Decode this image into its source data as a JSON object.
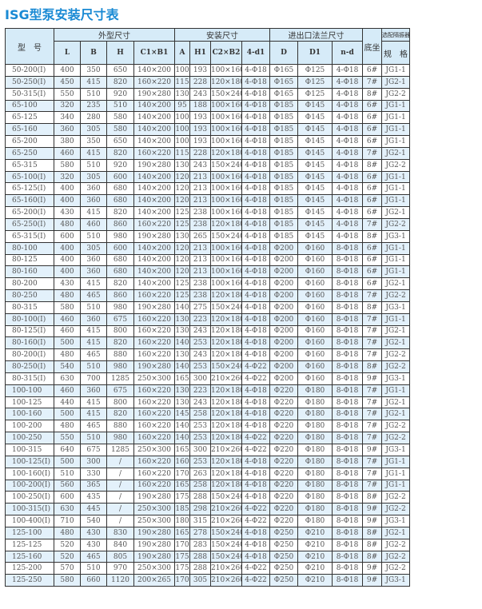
{
  "title": "ISG型泵安装尺寸表",
  "header": {
    "model": "型　号",
    "groups": [
      "外型尺寸",
      "安装尺寸",
      "进出口法兰尺寸"
    ],
    "base": "底坐",
    "isolator_top": "选配隔振器",
    "isolator_bottom": "规　格",
    "columns": [
      "L",
      "B",
      "H",
      "C1×B1",
      "A",
      "H1",
      "C2×B2",
      "4-d1",
      "D",
      "D1",
      "n-d"
    ]
  },
  "colors": {
    "title": "#1a8ad4",
    "header_bg": "#d6ebf8",
    "row_alt_bg": "#e3f1fb"
  },
  "rows": [
    [
      "50-200(I)",
      "400",
      "350",
      "650",
      "140×200",
      "100",
      "193",
      "100×160",
      "4-Φ18",
      "Φ165",
      "Φ125",
      "4-Φ18",
      "6#",
      "JG1-1"
    ],
    [
      "50-250(I)",
      "450",
      "415",
      "820",
      "160×220",
      "115",
      "228",
      "120×180",
      "4-Φ18",
      "Φ165",
      "Φ125",
      "4-Φ18",
      "7#",
      "JG2-1"
    ],
    [
      "50-315(I)",
      "550",
      "510",
      "920",
      "190×280",
      "130",
      "243",
      "150×240",
      "4-Φ18",
      "Φ165",
      "Φ125",
      "4-Φ18",
      "8#",
      "JG2-2"
    ],
    [
      "65-100",
      "320",
      "235",
      "510",
      "140×200",
      "95",
      "188",
      "100×160",
      "4-Φ18",
      "Φ185",
      "Φ145",
      "4-Φ18",
      "6#",
      "JG1-1"
    ],
    [
      "65-125",
      "340",
      "280",
      "580",
      "140×200",
      "100",
      "193",
      "100×160",
      "4-Φ18",
      "Φ185",
      "Φ145",
      "4-Φ18",
      "6#",
      "JG1-1"
    ],
    [
      "65-160",
      "360",
      "305",
      "580",
      "140×200",
      "100",
      "193",
      "100×160",
      "4-Φ18",
      "Φ185",
      "Φ145",
      "4-Φ18",
      "6#",
      "JG1-1"
    ],
    [
      "65-200",
      "380",
      "350",
      "650",
      "140×200",
      "100",
      "193",
      "100×160",
      "4-Φ18",
      "Φ185",
      "Φ145",
      "4-Φ18",
      "6#",
      "JG1-1"
    ],
    [
      "65-250",
      "460",
      "415",
      "820",
      "160×220",
      "115",
      "228",
      "120×180",
      "4-Φ18",
      "Φ185",
      "Φ145",
      "4-Φ18",
      "7#",
      "JG2-1"
    ],
    [
      "65-315",
      "580",
      "510",
      "920",
      "190×280",
      "130",
      "243",
      "150×240",
      "4-Φ18",
      "Φ185",
      "Φ145",
      "4-Φ18",
      "8#",
      "JG2-2"
    ],
    [
      "65-100(I)",
      "320",
      "305",
      "600",
      "140×200",
      "120",
      "213",
      "100×160",
      "4-Φ18",
      "Φ185",
      "Φ145",
      "4-Φ18",
      "6#",
      "JG1-1"
    ],
    [
      "65-125(I)",
      "400",
      "360",
      "680",
      "140×200",
      "120",
      "213",
      "100×160",
      "4-Φ18",
      "Φ185",
      "Φ145",
      "4-Φ18",
      "6#",
      "JG1-1"
    ],
    [
      "65-160(I)",
      "400",
      "360",
      "680",
      "140×200",
      "120",
      "213",
      "100×160",
      "4-Φ18",
      "Φ185",
      "Φ145",
      "4-Φ18",
      "6#",
      "JG1-1"
    ],
    [
      "65-200(I)",
      "430",
      "415",
      "820",
      "140×200",
      "125",
      "238",
      "100×160",
      "4-Φ18",
      "Φ185",
      "Φ145",
      "4-Φ18",
      "6#",
      "JG2-1"
    ],
    [
      "65-250(I)",
      "480",
      "460",
      "860",
      "160×220",
      "125",
      "238",
      "120×180",
      "4-Φ18",
      "Φ185",
      "Φ145",
      "4-Φ18",
      "7#",
      "JG2-2"
    ],
    [
      "65-315(I)",
      "600",
      "510",
      "980",
      "190×280",
      "130",
      "265",
      "150×240",
      "4-Φ18",
      "Φ185",
      "Φ145",
      "4-Φ18",
      "8#",
      "JG3-1"
    ],
    [
      "80-100",
      "400",
      "305",
      "600",
      "140×200",
      "120",
      "213",
      "100×160",
      "4-Φ18",
      "Φ200",
      "Φ160",
      "8-Φ18",
      "6#",
      "JG1-1"
    ],
    [
      "80-125",
      "400",
      "360",
      "680",
      "140×200",
      "120",
      "213",
      "100×160",
      "4-Φ18",
      "Φ200",
      "Φ160",
      "8-Φ18",
      "6#",
      "JG1-1"
    ],
    [
      "80-160",
      "400",
      "360",
      "680",
      "140×200",
      "120",
      "213",
      "100×160",
      "4-Φ18",
      "Φ200",
      "Φ160",
      "8-Φ18",
      "6#",
      "JG1-1"
    ],
    [
      "80-200",
      "430",
      "415",
      "820",
      "140×200",
      "125",
      "238",
      "100×160",
      "4-Φ18",
      "Φ200",
      "Φ160",
      "8-Φ18",
      "6#",
      "JG2-1"
    ],
    [
      "80-250",
      "480",
      "465",
      "860",
      "160×220",
      "125",
      "238",
      "120×180",
      "4-Φ18",
      "Φ200",
      "Φ160",
      "8-Φ18",
      "7#",
      "JG2-2"
    ],
    [
      "80-315",
      "580",
      "510",
      "980",
      "190×280",
      "140",
      "275",
      "150×240",
      "4-Φ18",
      "Φ200",
      "Φ160",
      "8-Φ18",
      "8#",
      "JG3-1"
    ],
    [
      "80-100(I)",
      "460",
      "360",
      "675",
      "160×220",
      "130",
      "223",
      "120×180",
      "4-Φ18",
      "Φ200",
      "Φ160",
      "8-Φ18",
      "7#",
      "JG1-1"
    ],
    [
      "80-125(I)",
      "460",
      "415",
      "800",
      "160×220",
      "130",
      "243",
      "120×180",
      "4-Φ18",
      "Φ200",
      "Φ160",
      "8-Φ18",
      "7#",
      "JG2-1"
    ],
    [
      "80-160(I)",
      "500",
      "415",
      "820",
      "160×220",
      "140",
      "253",
      "120×180",
      "4-Φ18",
      "Φ200",
      "Φ160",
      "8-Φ18",
      "7#",
      "JG2-1"
    ],
    [
      "80-200(I)",
      "480",
      "465",
      "880",
      "160×220",
      "130",
      "243",
      "120×180",
      "4-Φ18",
      "Φ200",
      "Φ160",
      "8-Φ18",
      "7#",
      "JG2-2"
    ],
    [
      "80-250(I)",
      "540",
      "510",
      "980",
      "190×280",
      "140",
      "253",
      "150×240",
      "4-Φ22",
      "Φ200",
      "Φ160",
      "8-Φ18",
      "8#",
      "JG2-2"
    ],
    [
      "80-315(I)",
      "630",
      "700",
      "1285",
      "250×300",
      "165",
      "300",
      "210×260",
      "4-Φ22",
      "Φ200",
      "Φ160",
      "8-Φ18",
      "9#",
      "JG3-1"
    ],
    [
      "100-100",
      "460",
      "360",
      "675",
      "160×220",
      "130",
      "223",
      "120×180",
      "4-Φ18",
      "Φ220",
      "Φ180",
      "8-Φ18",
      "7#",
      "JG1-1"
    ],
    [
      "100-125",
      "440",
      "415",
      "800",
      "160×220",
      "130",
      "243",
      "120×180",
      "4-Φ18",
      "Φ220",
      "Φ180",
      "8-Φ18",
      "7#",
      "JG2-1"
    ],
    [
      "100-160",
      "500",
      "415",
      "820",
      "160×220",
      "145",
      "258",
      "120×180",
      "4-Φ18",
      "Φ220",
      "Φ180",
      "8-Φ18",
      "7#",
      "JG2-1"
    ],
    [
      "100-200",
      "480",
      "465",
      "880",
      "160×220",
      "140",
      "253",
      "120×180",
      "4-Φ18",
      "Φ220",
      "Φ180",
      "8-Φ18",
      "7#",
      "JG2-2"
    ],
    [
      "100-250",
      "550",
      "510",
      "980",
      "160×220",
      "140",
      "253",
      "120×180",
      "4-Φ22",
      "Φ220",
      "Φ180",
      "8-Φ18",
      "7#",
      "JG2-2"
    ],
    [
      "100-315",
      "640",
      "675",
      "1285",
      "250×300",
      "165",
      "300",
      "210×260",
      "4-Φ22",
      "Φ220",
      "Φ180",
      "8-Φ18",
      "9#",
      "JG3-1"
    ],
    [
      "100-125(I)",
      "500",
      "300",
      "/",
      "160×220",
      "160",
      "253",
      "120×180",
      "4-Φ18",
      "Φ220",
      "Φ180",
      "8-Φ18",
      "7#",
      "JG1-1"
    ],
    [
      "100-160(I)",
      "510",
      "330",
      "/",
      "160×220",
      "170",
      "263",
      "120×180",
      "4-Φ18",
      "Φ220",
      "Φ180",
      "8-Φ18",
      "7#",
      "JG1-1"
    ],
    [
      "100-200(I)",
      "560",
      "365",
      "/",
      "160×220",
      "165",
      "258",
      "120×180",
      "4-Φ18",
      "Φ220",
      "Φ180",
      "8-Φ18",
      "7#",
      "JG1-1"
    ],
    [
      "100-250(I)",
      "600",
      "435",
      "/",
      "190×280",
      "175",
      "288",
      "150×240",
      "4-Φ18",
      "Φ220",
      "Φ180",
      "8-Φ18",
      "8#",
      "JG2-2"
    ],
    [
      "100-315(I)",
      "630",
      "445",
      "/",
      "250×300",
      "185",
      "298",
      "210×260",
      "4-Φ22",
      "Φ220",
      "Φ180",
      "8-Φ18",
      "9#",
      "JG2-2"
    ],
    [
      "100-400(I)",
      "710",
      "540",
      "/",
      "250×300",
      "180",
      "315",
      "210×260",
      "4-Φ22",
      "Φ220",
      "Φ180",
      "8-Φ18",
      "9#",
      "JG3-1"
    ],
    [
      "125-100",
      "480",
      "430",
      "830",
      "190×280",
      "165",
      "278",
      "150×240",
      "4-Φ18",
      "Φ250",
      "Φ210",
      "8-Φ18",
      "8#",
      "JG2-1"
    ],
    [
      "125-125",
      "520",
      "430",
      "840",
      "190×280",
      "170",
      "283",
      "150×240",
      "4-Φ18",
      "Φ250",
      "Φ210",
      "8-Φ18",
      "8#",
      "JG2-2"
    ],
    [
      "125-160",
      "520",
      "465",
      "805",
      "190×280",
      "175",
      "288",
      "150×240",
      "4-Φ18",
      "Φ250",
      "Φ210",
      "8-Φ18",
      "8#",
      "JG2-2"
    ],
    [
      "125-200",
      "570",
      "510",
      "970",
      "250×300",
      "175",
      "288",
      "210×260",
      "4-Φ22",
      "Φ250",
      "Φ210",
      "8-Φ18",
      "9#",
      "JG2-2"
    ],
    [
      "125-250",
      "580",
      "660",
      "1120",
      "200×265",
      "170",
      "305",
      "210×260",
      "4-Φ22",
      "Φ250",
      "Φ210",
      "8-Φ18",
      "9#",
      "JG3-1"
    ]
  ]
}
